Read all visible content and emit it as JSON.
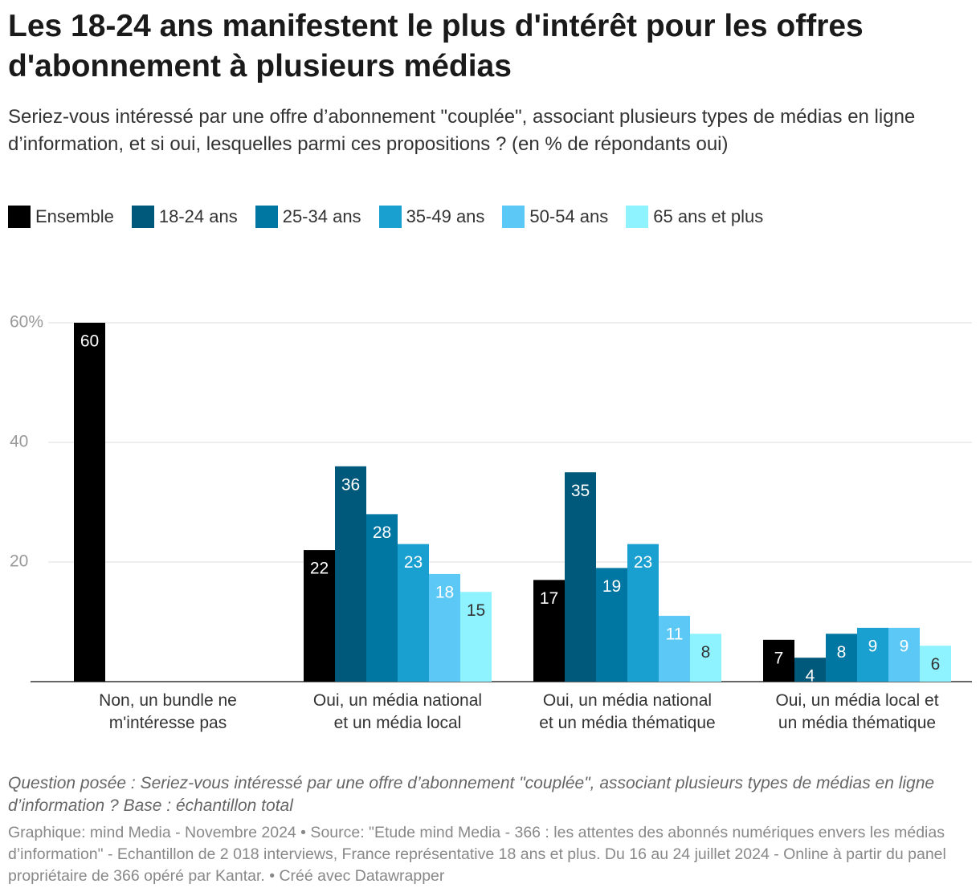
{
  "chart_data": {
    "type": "bar",
    "title": "Les 18-24 ans manifestent le plus d'intérêt pour les offres d'abonnement à plusieurs médias",
    "subtitle": "Seriez-vous intéressé par une offre d’abonnement \"couplée\", associant plusieurs types de médias en ligne d’information, et si oui, lesquelles parmi ces propositions ? (en % de répondants oui)",
    "categories": [
      "Non, un bundle ne\nm'intéresse pas",
      "Oui, un média national\net un média local",
      "Oui, un média national\net un média thématique",
      "Oui, un média local et\nun média thématique"
    ],
    "series": [
      {
        "name": "Ensemble",
        "color": "#000000",
        "values": [
          60,
          22,
          17,
          7
        ]
      },
      {
        "name": "18-24 ans",
        "color": "#00587a",
        "values": [
          null,
          36,
          35,
          4
        ]
      },
      {
        "name": "25-34 ans",
        "color": "#0077a3",
        "values": [
          null,
          28,
          19,
          8
        ]
      },
      {
        "name": "35-49 ans",
        "color": "#1a9fd1",
        "values": [
          null,
          23,
          23,
          9
        ]
      },
      {
        "name": "50-54 ans",
        "color": "#5bc8f5",
        "values": [
          null,
          18,
          11,
          9
        ]
      },
      {
        "name": "65 ans et plus",
        "color": "#8ef2ff",
        "values": [
          null,
          15,
          8,
          6
        ]
      }
    ],
    "ylim": [
      0,
      60
    ],
    "yticks": [
      20,
      40,
      {
        "value": 60,
        "label": "60%"
      }
    ],
    "grid": true,
    "note": "Question posée : Seriez-vous intéressé par une offre d’abonnement \"couplée\", associant plusieurs types de médias en ligne d’information ? Base : échantillon total",
    "source": "Graphique: mind Media - Novembre 2024 • Source: \"Etude mind Media - 366 : les attentes des abonnés numériques envers les médias d’information\" - Echantillon de 2 018 interviews, France représentative 18 ans et plus. Du 16 au 24 juillet 2024 - Online à partir du panel propriétaire de 366 opéré par Kantar. • Créé avec Datawrapper"
  }
}
